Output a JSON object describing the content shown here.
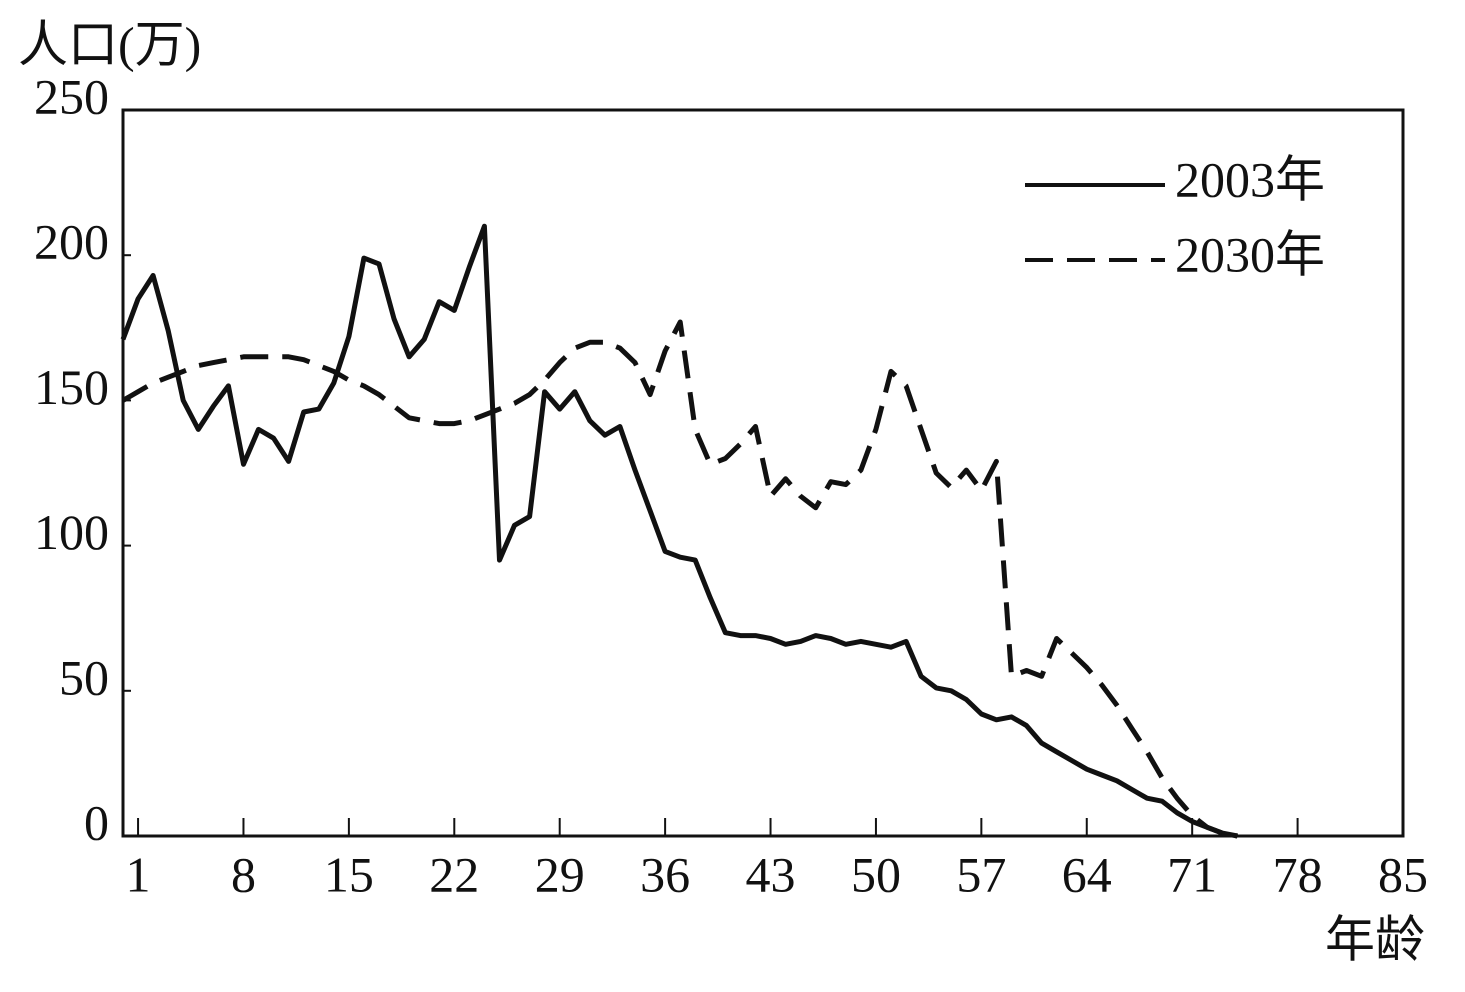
{
  "chart_data": {
    "type": "line",
    "y_label": "人口(万)",
    "x_label": "年龄",
    "x": [
      0,
      1,
      2,
      3,
      4,
      5,
      6,
      7,
      8,
      9,
      10,
      11,
      12,
      13,
      14,
      15,
      16,
      17,
      18,
      19,
      20,
      21,
      22,
      23,
      24,
      25,
      26,
      27,
      28,
      29,
      30,
      31,
      32,
      33,
      34,
      35,
      36,
      37,
      38,
      39,
      40,
      41,
      42,
      43,
      44,
      45,
      46,
      47,
      48,
      49,
      50,
      51,
      52,
      53,
      54,
      55,
      56,
      57,
      58,
      59,
      60,
      61,
      62,
      63,
      64,
      65,
      66,
      67,
      68,
      69,
      70,
      71,
      72,
      73,
      74
    ],
    "series": [
      {
        "name": "2003年",
        "color": "#111111",
        "dash": "solid",
        "values": [
          171,
          185,
          193,
          174,
          150,
          140,
          148,
          155,
          128,
          140,
          137,
          129,
          146,
          147,
          156,
          172,
          199,
          197,
          178,
          165,
          171,
          184,
          181,
          196,
          210,
          95,
          107,
          110,
          153,
          147,
          153,
          143,
          138,
          141,
          126,
          112,
          98,
          96,
          95,
          82,
          70,
          69,
          69,
          68,
          66,
          67,
          69,
          68,
          66,
          67,
          66,
          65,
          67,
          55,
          51,
          50,
          47,
          42,
          40,
          41,
          38,
          32,
          29,
          26,
          23,
          21,
          19,
          16,
          13,
          12,
          8,
          5,
          3,
          1,
          0
        ]
      },
      {
        "name": "2030年",
        "color": "#111111",
        "dash": "dashed",
        "values": [
          150,
          153,
          156,
          158,
          160,
          162,
          163,
          164,
          165,
          165,
          165,
          165,
          164,
          162,
          160,
          157,
          155,
          152,
          148,
          144,
          143,
          142,
          142,
          143,
          145,
          147,
          149,
          152,
          157,
          163,
          168,
          170,
          170,
          168,
          163,
          152,
          167,
          177,
          140,
          128,
          130,
          135,
          141,
          117,
          123,
          117,
          113,
          122,
          121,
          126,
          140,
          160,
          155,
          140,
          125,
          120,
          126,
          119,
          129,
          55,
          57,
          55,
          68,
          63,
          58,
          52,
          45,
          37,
          29,
          20,
          13,
          7,
          3,
          1,
          0
        ]
      }
    ],
    "xlim": [
      0,
      85
    ],
    "xticks": [
      1,
      8,
      15,
      22,
      29,
      36,
      43,
      50,
      57,
      64,
      71,
      78,
      85
    ],
    "ylim": [
      0,
      250
    ],
    "yticks": [
      0,
      50,
      100,
      150,
      200,
      250
    ],
    "grid": false,
    "legend": "top-right"
  }
}
